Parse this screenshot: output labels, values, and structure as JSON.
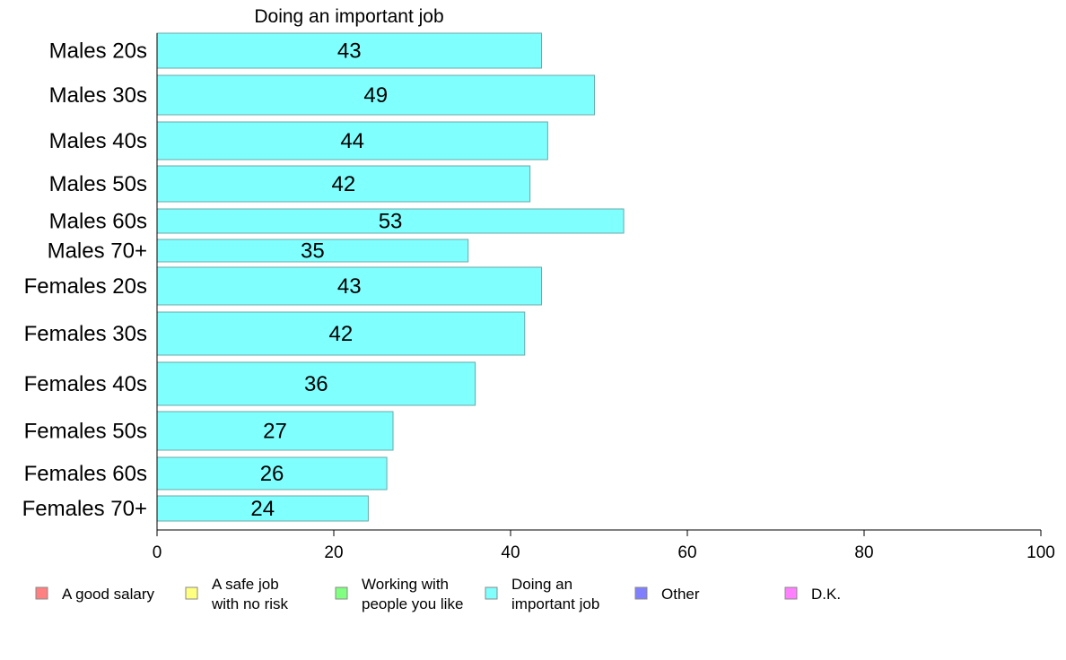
{
  "chart_data": {
    "type": "bar",
    "orientation": "horizontal",
    "title": "Doing an important job",
    "categories": [
      "Males 20s",
      "Males 30s",
      "Males 40s",
      "Males 50s",
      "Males 60s",
      "Males 70+",
      "Females 20s",
      "Females 30s",
      "Females 40s",
      "Females 50s",
      "Females 60s",
      "Females 70+"
    ],
    "values": [
      43.5,
      49.5,
      44.2,
      42.2,
      52.8,
      35.2,
      43.5,
      41.6,
      36.0,
      26.7,
      26.0,
      23.9
    ],
    "value_labels": [
      "43",
      "49",
      "44",
      "42",
      "53",
      "35",
      "43",
      "42",
      "36",
      "27",
      "26",
      "24"
    ],
    "bar_color": "#80ffff",
    "bar_stroke": "#6aa8a8",
    "xlim": [
      0,
      100
    ],
    "xticks": [
      "0",
      "20",
      "40",
      "60",
      "80",
      "100"
    ],
    "xlabel": "",
    "ylabel": "",
    "grid": false,
    "legend_position": "bottom",
    "legend": [
      {
        "lines": [
          "A good salary"
        ],
        "color": "#ff8080"
      },
      {
        "lines": [
          "A safe job",
          "with no risk"
        ],
        "color": "#ffff80"
      },
      {
        "lines": [
          "Working with",
          "people you like"
        ],
        "color": "#80ff80"
      },
      {
        "lines": [
          "Doing an",
          "important job"
        ],
        "color": "#80ffff"
      },
      {
        "lines": [
          "Other"
        ],
        "color": "#8080ff"
      },
      {
        "lines": [
          "D.K."
        ],
        "color": "#ff80ff"
      }
    ]
  }
}
